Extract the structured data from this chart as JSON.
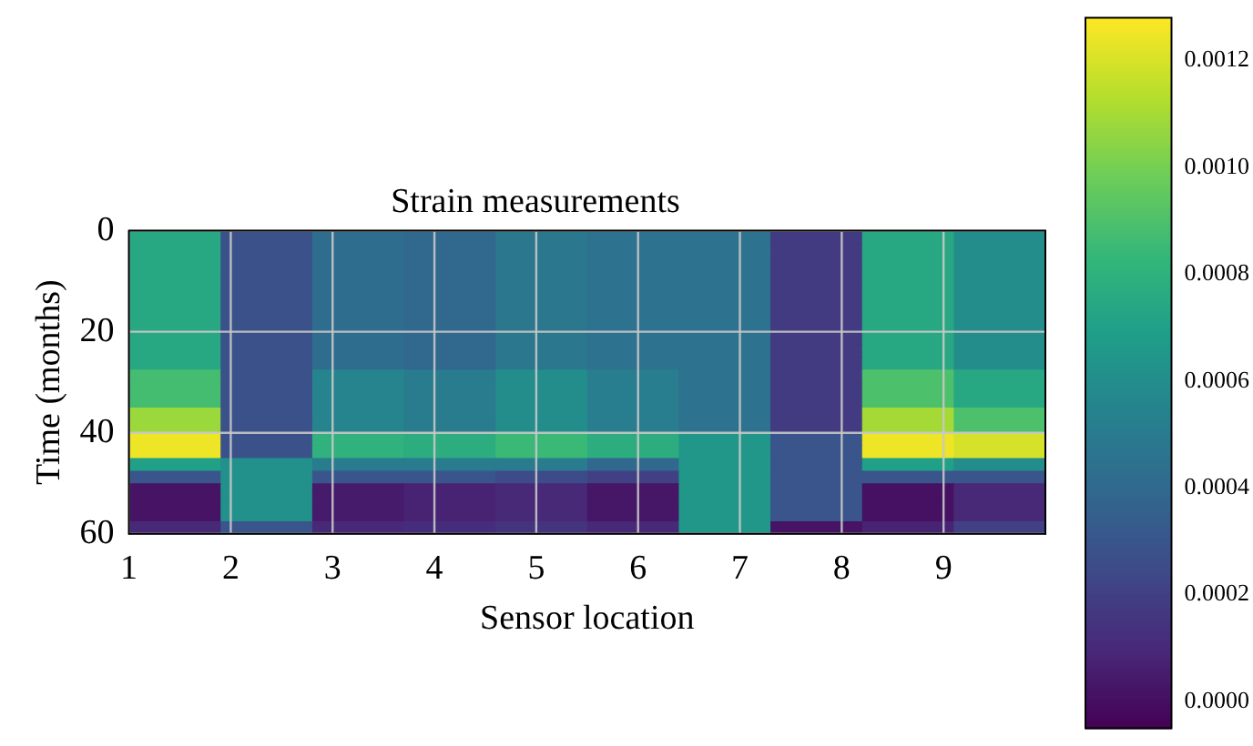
{
  "chart_data": {
    "type": "heatmap",
    "title": "Strain measurements",
    "xlabel": "Sensor location",
    "ylabel": "Time (months)",
    "xlim": [
      1,
      10
    ],
    "xticks": [
      1,
      2,
      3,
      4,
      5,
      6,
      7,
      8,
      9
    ],
    "ylim": [
      60,
      0
    ],
    "yticks": [
      0,
      20,
      40,
      60
    ],
    "grid": true,
    "clim": [
      -5e-05,
      0.00128
    ],
    "cticks": [
      {
        "value": 0,
        "label": "0.0000"
      },
      {
        "value": 0.0002,
        "label": "0.0002"
      },
      {
        "value": 0.0004,
        "label": "0.0004"
      },
      {
        "value": 0.0006,
        "label": "0.0006"
      },
      {
        "value": 0.0008,
        "label": "0.0008"
      },
      {
        "value": 0.001,
        "label": "0.0010"
      },
      {
        "value": 0.0012,
        "label": "0.0012"
      }
    ],
    "cells": [
      [
        0.00075,
        0.00028,
        0.00042,
        0.0004,
        0.00048,
        0.00045,
        0.00045,
        0.00018,
        0.00075,
        0.0006
      ],
      [
        0.00075,
        0.00028,
        0.00042,
        0.0004,
        0.00048,
        0.00045,
        0.00045,
        0.00018,
        0.00075,
        0.0006
      ],
      [
        0.00075,
        0.00028,
        0.00042,
        0.0004,
        0.00048,
        0.00045,
        0.00045,
        0.00018,
        0.00075,
        0.0006
      ],
      [
        0.00075,
        0.00028,
        0.00042,
        0.0004,
        0.00048,
        0.00045,
        0.00045,
        0.00018,
        0.00075,
        0.0006
      ],
      [
        0.00075,
        0.00028,
        0.00042,
        0.0004,
        0.00048,
        0.00045,
        0.00045,
        0.00018,
        0.00075,
        0.0006
      ],
      [
        0.00075,
        0.00028,
        0.00042,
        0.0004,
        0.00048,
        0.00045,
        0.00045,
        0.00018,
        0.00075,
        0.0006
      ],
      [
        0.00075,
        0.00028,
        0.00042,
        0.0004,
        0.00048,
        0.00045,
        0.00045,
        0.00018,
        0.00075,
        0.0006
      ],
      [
        0.00075,
        0.00028,
        0.00042,
        0.0004,
        0.00048,
        0.00045,
        0.00045,
        0.00018,
        0.00075,
        0.0006
      ],
      [
        0.00075,
        0.00028,
        0.00042,
        0.0004,
        0.00048,
        0.00045,
        0.00045,
        0.00018,
        0.00075,
        0.0006
      ],
      [
        0.00075,
        0.00028,
        0.00042,
        0.0004,
        0.00048,
        0.00045,
        0.00045,
        0.00018,
        0.00075,
        0.0006
      ],
      [
        0.00075,
        0.00028,
        0.00042,
        0.0004,
        0.00048,
        0.00045,
        0.00045,
        0.00018,
        0.00075,
        0.0006
      ],
      [
        0.00088,
        0.00028,
        0.00055,
        0.0005,
        0.0006,
        0.00052,
        0.00045,
        0.00018,
        0.0009,
        0.00075
      ],
      [
        0.00088,
        0.00028,
        0.00055,
        0.0005,
        0.0006,
        0.00052,
        0.00045,
        0.00018,
        0.0009,
        0.00075
      ],
      [
        0.00088,
        0.00028,
        0.00055,
        0.0005,
        0.0006,
        0.00052,
        0.00045,
        0.00018,
        0.0009,
        0.00075
      ],
      [
        0.00108,
        0.00028,
        0.00055,
        0.0005,
        0.0006,
        0.00052,
        0.00045,
        0.00018,
        0.0011,
        0.0009
      ],
      [
        0.00108,
        0.00028,
        0.00055,
        0.0005,
        0.0006,
        0.00052,
        0.00045,
        0.00018,
        0.0011,
        0.0009
      ],
      [
        0.00125,
        0.00028,
        0.0008,
        0.00078,
        0.00085,
        0.00078,
        0.00065,
        0.0003,
        0.00125,
        0.0012
      ],
      [
        0.00125,
        0.00028,
        0.0008,
        0.00078,
        0.00085,
        0.00078,
        0.00065,
        0.0003,
        0.00125,
        0.0012
      ],
      [
        0.0007,
        0.00062,
        0.0005,
        0.0005,
        0.0005,
        0.0004,
        0.00065,
        0.0003,
        0.0007,
        0.0006
      ],
      [
        0.0003,
        0.00062,
        0.0003,
        0.0003,
        0.00025,
        0.0002,
        0.00065,
        0.0003,
        0.0003,
        0.0003
      ],
      [
        2e-05,
        0.00062,
        5e-05,
        8e-05,
        0.0001,
        3e-05,
        0.00065,
        0.0003,
        1e-05,
        0.0001
      ],
      [
        2e-05,
        0.00062,
        5e-05,
        8e-05,
        0.0001,
        3e-05,
        0.00065,
        0.0003,
        1e-05,
        0.0001
      ],
      [
        2e-05,
        0.00062,
        5e-05,
        8e-05,
        0.0001,
        3e-05,
        0.00065,
        0.0003,
        1e-05,
        0.0001
      ],
      [
        0.0001,
        0.0003,
        0.0001,
        0.00012,
        0.00015,
        0.0001,
        0.00065,
        2e-05,
        8e-05,
        0.0002
      ]
    ]
  }
}
